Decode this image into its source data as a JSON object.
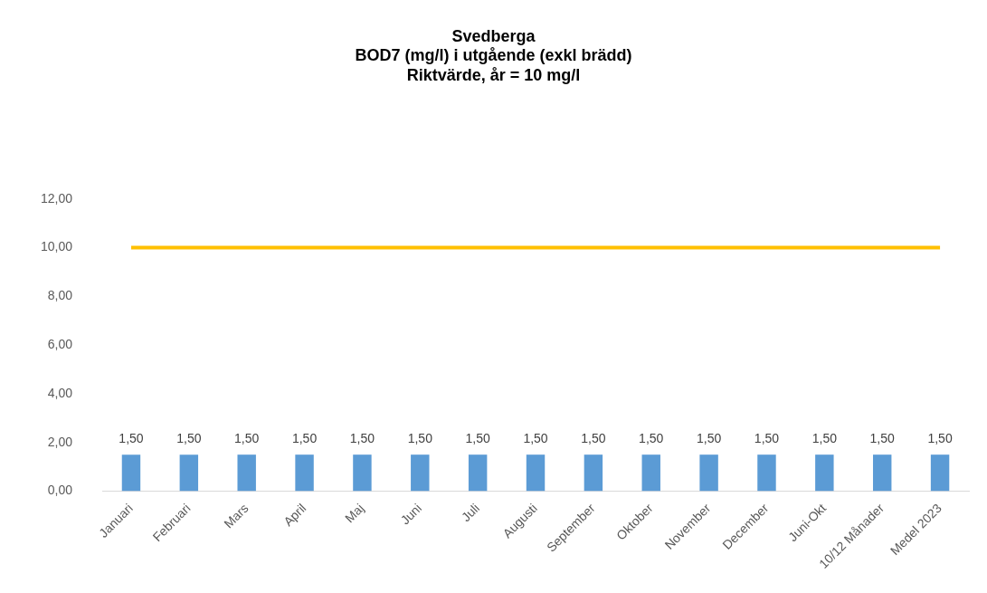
{
  "chart_data": {
    "type": "bar",
    "title": "Svedberga\nBOD7 (mg/l) i utgående (exkl brädd)\nRiktvärde, år = 10 mg/l",
    "categories": [
      "Januari",
      "Februari",
      "Mars",
      "April",
      "Maj",
      "Juni",
      "Juli",
      "Augusti",
      "September",
      "Oktober",
      "November",
      "December",
      "Juni-Okt",
      "10/12 Månader",
      "Medel 2023"
    ],
    "series": [
      {
        "color": "#5b9bd5",
        "values": [
          1.5,
          1.5,
          1.5,
          1.5,
          1.5,
          1.5,
          1.5,
          1.5,
          1.5,
          1.5,
          1.5,
          1.5,
          1.5,
          1.5,
          1.5
        ],
        "value_labels": [
          "1,50",
          "1,50",
          "1,50",
          "1,50",
          "1,50",
          "1,50",
          "1,50",
          "1,50",
          "1,50",
          "1,50",
          "1,50",
          "1,50",
          "1,50",
          "1,50",
          "1,50"
        ]
      },
      {
        "type": "line",
        "color": "#ffc000",
        "values": [
          10,
          10,
          10,
          10,
          10,
          10,
          10,
          10,
          10,
          10,
          10,
          10,
          10,
          10,
          10
        ]
      }
    ],
    "ylim": [
      0,
      12
    ],
    "yticks": [
      {
        "value": 0,
        "label": "0,00"
      },
      {
        "value": 2,
        "label": "2,00"
      },
      {
        "value": 4,
        "label": "4,00"
      },
      {
        "value": 6,
        "label": "6,00"
      },
      {
        "value": 8,
        "label": "8,00"
      },
      {
        "value": 10,
        "label": "10,00"
      },
      {
        "value": 12,
        "label": "12,00"
      }
    ],
    "grid": false,
    "legend": false,
    "marker": "none"
  }
}
